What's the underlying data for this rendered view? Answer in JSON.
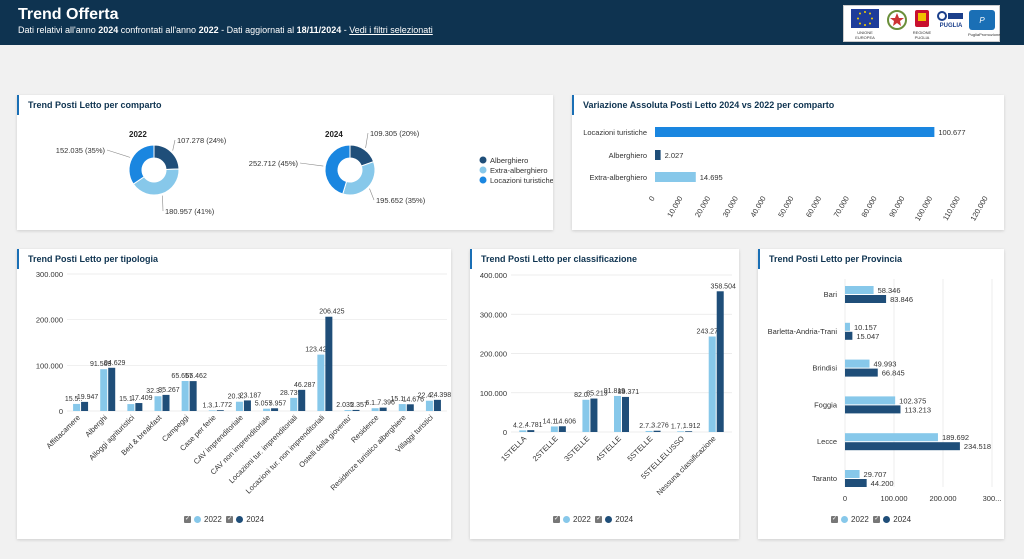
{
  "header": {
    "title": "Trend Offerta",
    "sub_1": "Dati relativi all'anno ",
    "year_current": "2024",
    "sub_2": " confrontati all'anno ",
    "year_compare": "2022",
    "sub_3": " - Dati aggiornati al ",
    "updated": "18/11/2024",
    "sub_4": " - ",
    "filters_link": "Vedi i filtri selezionati"
  },
  "logos": {
    "eu": "UNIONE EUROPEA",
    "italy": "",
    "puglia": "REGIONE PUGLIA",
    "por": "PUGLIA",
    "fesr": "PugliaPromozione"
  },
  "colors": {
    "dark": "#1f4e79",
    "light": "#87c8ea",
    "mid": "#1a86e0"
  },
  "cards": {
    "comparto": "Trend Posti Letto per comparto",
    "variazione": "Variazione Assoluta Posti Letto 2024 vs 2022 per comparto",
    "tipologia": "Trend Posti Letto per tipologia",
    "classificazione": "Trend Posti Letto per classificazione",
    "provincia": "Trend Posti Letto per Provincia"
  },
  "legend": {
    "y2022": "2022",
    "y2024": "2024"
  },
  "chart_data": [
    {
      "type": "pie",
      "title": "2022",
      "categories": [
        "Alberghiero",
        "Extra-alberghiero",
        "Locazioni turistiche"
      ],
      "values": [
        107278,
        180957,
        152035
      ],
      "labels": [
        "107.278 (24%)",
        "180.957 (41%)",
        "152.035 (35%)"
      ],
      "colors": [
        "#1f4e79",
        "#87c8ea",
        "#1a86e0"
      ],
      "legend": "right"
    },
    {
      "type": "pie",
      "title": "2024",
      "categories": [
        "Alberghiero",
        "Extra-alberghiero",
        "Locazioni turistiche"
      ],
      "values": [
        109305,
        195652,
        252712
      ],
      "labels": [
        "109.305 (20%)",
        "195.652 (35%)",
        "252.712 (45%)"
      ],
      "colors": [
        "#1f4e79",
        "#87c8ea",
        "#1a86e0"
      ],
      "legend": "right"
    },
    {
      "type": "bar",
      "orientation": "horizontal",
      "categories": [
        "Locazioni turistiche",
        "Alberghiero",
        "Extra-alberghiero"
      ],
      "values": [
        100677,
        2027,
        14695
      ],
      "labels": [
        "100.677",
        "2.027",
        "14.695"
      ],
      "colors": [
        "#1a86e0",
        "#1f4e79",
        "#87c8ea"
      ],
      "xlim": [
        0,
        120000
      ],
      "ticks": [
        "0",
        "10.000",
        "20.000",
        "30.000",
        "40.000",
        "50.000",
        "60.000",
        "70.000",
        "80.000",
        "90.000",
        "100.000",
        "110.000",
        "120.000"
      ]
    },
    {
      "type": "bar",
      "categories": [
        "Affittacamere",
        "Alberghi",
        "Alloggi agrituristici",
        "Bed & breakfast",
        "Campeggi",
        "Case per ferie",
        "CAV imprenditoriale",
        "CAV non imprenditoriale",
        "Locazioni tur. imprenditoriali",
        "Locazioni tur. non imprenditoriali",
        "Ostelli della gioventu'",
        "Residence",
        "Residenze turistico alberghiere",
        "Villaggi turistici"
      ],
      "series": [
        {
          "name": "2022",
          "values": [
            15500,
            91563,
            15146,
            32355,
            65657,
            1350,
            20325,
            5057,
            28739,
            123426,
            2035,
            6100,
            15153,
            22454
          ],
          "labels": [
            "15.5..",
            "91.563",
            "15.1..",
            "32.3..",
            "65.657",
            "1.3..",
            "20.3..",
            "5.057",
            "28.739",
            "123.426",
            "2.035",
            "6.1..",
            "15.1..",
            "22.4.."
          ]
        },
        {
          "name": "2024",
          "values": [
            19947,
            94629,
            17409,
            35267,
            65462,
            1772,
            23187,
            5957,
            46287,
            206425,
            2357,
            7396,
            14676,
            24398
          ],
          "labels": [
            "19.947",
            "94.629",
            "17.409",
            "35.267",
            "65.462",
            "1.772",
            "23.187",
            "5.957",
            "46.287",
            "206.425",
            "2.357",
            "7.396",
            "14.676",
            "24.398"
          ]
        }
      ],
      "ylim": [
        0,
        300000
      ],
      "ticks": [
        "0",
        "100.000",
        "200.000",
        "300.000"
      ],
      "legend": "bottom"
    },
    {
      "type": "bar",
      "categories": [
        "1STELLA",
        "2STELLE",
        "3STELLE",
        "4STELLE",
        "5STELLE",
        "5STELLELUSSO",
        "Nessuna classificazione"
      ],
      "series": [
        {
          "name": "2022",
          "values": [
            4200,
            14100,
            82000,
            91819,
            2700,
            1700,
            243276
          ],
          "labels": [
            "4.2..",
            "14.1..",
            "82.0..",
            "91.819",
            "2.7..",
            "1.7..",
            "243.276"
          ]
        },
        {
          "name": "2024",
          "values": [
            4781,
            14606,
            85219,
            89371,
            3276,
            1912,
            358504
          ],
          "labels": [
            "4.781",
            "14.606",
            "85.219",
            "89.371",
            "3.276",
            "1.912",
            "358.504"
          ]
        }
      ],
      "ylim": [
        0,
        400000
      ],
      "ticks": [
        "0",
        "100.000",
        "200.000",
        "300.000",
        "400.000"
      ],
      "legend": "bottom"
    },
    {
      "type": "bar",
      "orientation": "horizontal",
      "categories": [
        "Bari",
        "Barletta-Andria-Trani",
        "Brindisi",
        "Foggia",
        "Lecce",
        "Taranto"
      ],
      "series": [
        {
          "name": "2022",
          "values": [
            58346,
            10157,
            49993,
            102375,
            189692,
            29707
          ],
          "labels": [
            "58.346",
            "10.157",
            "49.993",
            "102.375",
            "189.692",
            "29.707"
          ]
        },
        {
          "name": "2024",
          "values": [
            83846,
            15047,
            66845,
            113213,
            234518,
            44200
          ],
          "labels": [
            "83.846",
            "15.047",
            "66.845",
            "113.213",
            "234.518",
            "44.200"
          ]
        }
      ],
      "xlim": [
        0,
        300000
      ],
      "ticks": [
        "0",
        "100.000",
        "200.000",
        "300..."
      ],
      "legend": "bottom"
    }
  ]
}
